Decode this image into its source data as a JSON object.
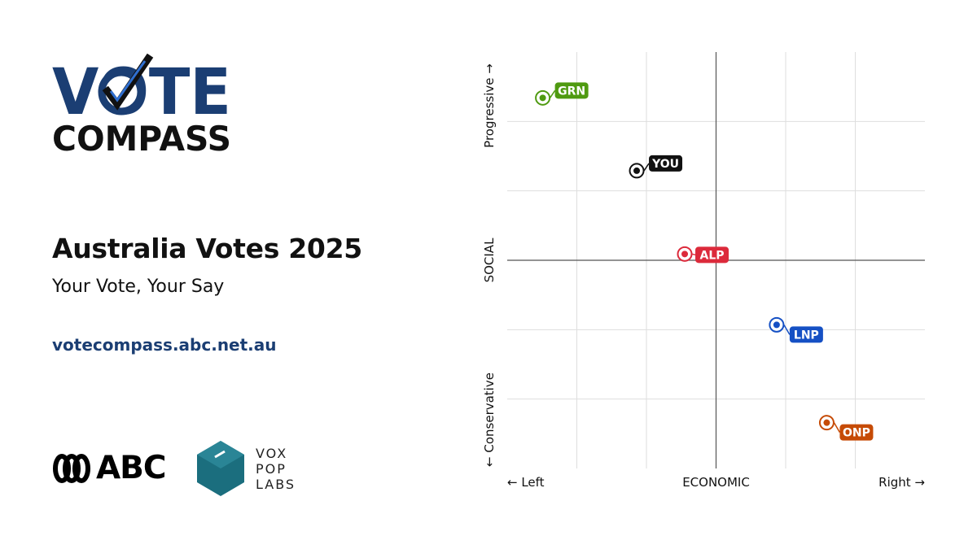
{
  "logo": {
    "line1": "VOTE",
    "line2": "COMPASS",
    "navy": "#1b3e73",
    "black": "#111111"
  },
  "title": "Australia Votes 2025",
  "subtitle": "Your Vote, Your Say",
  "website": "votecompass.abc.net.au",
  "partners": {
    "abc": {
      "label": "ABC",
      "icon": "abc-logo-icon"
    },
    "voxpop": {
      "lines": [
        "VOX",
        "POP",
        "LABS"
      ],
      "color": "#1b6e7e",
      "icon": "hexagon-ballot-icon"
    }
  },
  "chart_data": {
    "type": "scatter",
    "xlabel": "ECONOMIC",
    "ylabel": "SOCIAL",
    "x_left_label": "← Left",
    "x_right_label": "Right →",
    "y_top_label": "Progressive →",
    "y_bottom_label": "← Conservative",
    "xlim": [
      -10,
      10
    ],
    "ylim": [
      -10,
      10
    ],
    "grid": true,
    "points": [
      {
        "label": "GRN",
        "x": -8.3,
        "y": 7.8,
        "color": "#4f9a11",
        "label_side": "upper-right"
      },
      {
        "label": "YOU",
        "x": -3.8,
        "y": 4.3,
        "color": "#111111",
        "label_side": "upper-right"
      },
      {
        "label": "ALP",
        "x": -1.5,
        "y": 0.3,
        "color": "#dc2a3b",
        "label_side": "right"
      },
      {
        "label": "LNP",
        "x": 2.9,
        "y": -3.1,
        "color": "#1550c4",
        "label_side": "lower-right"
      },
      {
        "label": "ONP",
        "x": 5.3,
        "y": -7.8,
        "color": "#c64b06",
        "label_side": "lower-right"
      }
    ]
  }
}
